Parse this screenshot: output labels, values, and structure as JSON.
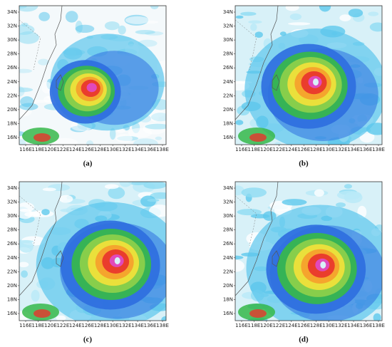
{
  "panels": [
    {
      "label": "(a)"
    },
    {
      "label": "(b)"
    },
    {
      "label": "(c)"
    },
    {
      "label": "(d)"
    }
  ],
  "y_axis": {
    "ticks": [
      "16N",
      "18N",
      "20N",
      "22N",
      "24N",
      "26N",
      "28N",
      "30N",
      "32N",
      "34N"
    ]
  },
  "x_axis": {
    "ticks": [
      "116E",
      "118E",
      "120E",
      "122E",
      "124E",
      "126E",
      "128E",
      "130E",
      "132E",
      "134E",
      "136E",
      "138E"
    ]
  }
}
